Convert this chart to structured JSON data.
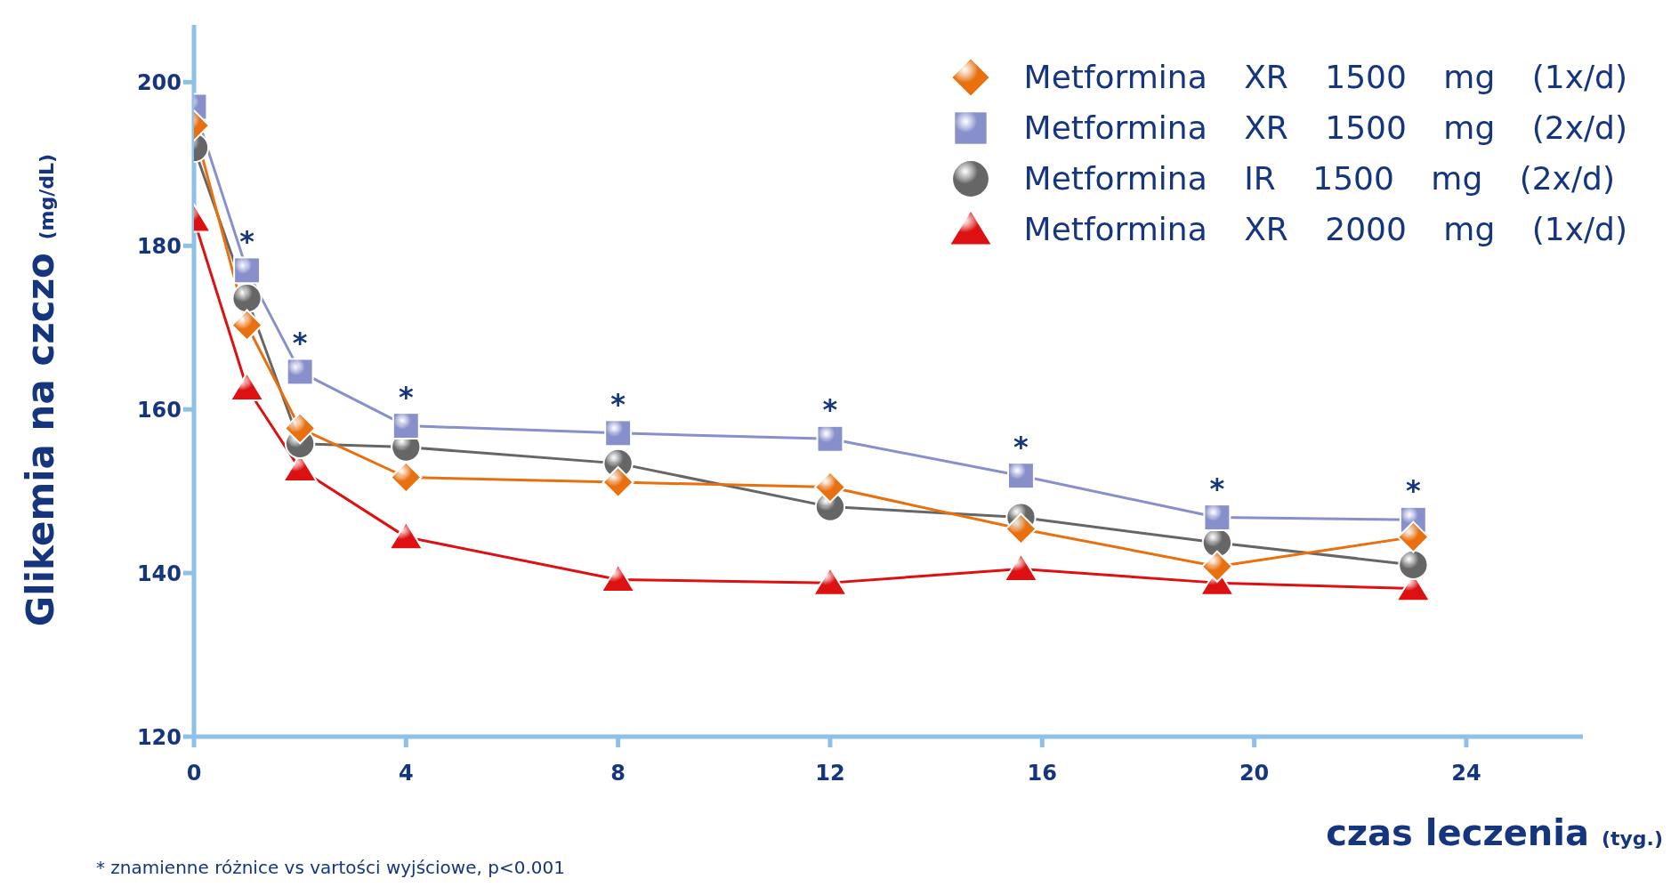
{
  "chart_data": {
    "type": "line",
    "xlabel": "czas leczenia (tyg.)",
    "ylabel": "Glikemia na czczo (mg/dL)",
    "xlim": [
      0,
      26.2
    ],
    "xticks": [
      0,
      4,
      8,
      12,
      16,
      20,
      24
    ],
    "ylim": [
      120,
      207
    ],
    "yticks": [
      120,
      140,
      160,
      180,
      200
    ],
    "grid": false,
    "legend": "top right",
    "series": [
      {
        "name": "Metformina XR 1500 mg (1x/d)",
        "color": "#e8700f",
        "marker": "diamond",
        "x": [
          0,
          1,
          2,
          4,
          8,
          12,
          15.6,
          19.3,
          23
        ],
        "values": [
          194.7,
          170.3,
          157.7,
          151.7,
          151.1,
          150.5,
          145.4,
          140.8,
          144.4
        ]
      },
      {
        "name": "Metformina XR 1500 mg (2x/d)",
        "color": "#8890cc",
        "marker": "square",
        "x": [
          0,
          1,
          2,
          4,
          8,
          12,
          15.6,
          19.3,
          23
        ],
        "values": [
          197,
          177,
          164.6,
          158,
          157.1,
          156.4,
          151.9,
          146.8,
          146.5
        ]
      },
      {
        "name": "Metformina IR 1500 mg (2x/d)",
        "color": "#666666",
        "marker": "circle",
        "x": [
          0,
          1,
          2,
          4,
          8,
          12,
          15.6,
          19.3,
          23
        ],
        "values": [
          192,
          173.6,
          155.8,
          155.4,
          153.4,
          148.1,
          146.8,
          143.7,
          141
        ]
      },
      {
        "name": "Metformina XR 2000 mg (1x/d)",
        "color": "#dd1111",
        "marker": "triangle",
        "x": [
          0,
          1,
          2,
          4,
          8,
          12,
          15.6,
          19.3,
          23
        ],
        "values": [
          183.2,
          162.6,
          152.7,
          144.4,
          139.2,
          138.8,
          140.5,
          138.8,
          138.1
        ]
      }
    ],
    "annotations": [
      {
        "text": "*",
        "x": 1,
        "y": 177
      },
      {
        "text": "*",
        "x": 2,
        "y": 164.6
      },
      {
        "text": "*",
        "x": 4,
        "y": 158
      },
      {
        "text": "*",
        "x": 8,
        "y": 157.1
      },
      {
        "text": "*",
        "x": 12,
        "y": 156.4
      },
      {
        "text": "*",
        "x": 15.6,
        "y": 151.9
      },
      {
        "text": "*",
        "x": 19.3,
        "y": 146.8
      },
      {
        "text": "*",
        "x": 23,
        "y": 146.5
      },
      "* znamienne różnice vs vartości wyjściowe, p<0.001"
    ]
  }
}
